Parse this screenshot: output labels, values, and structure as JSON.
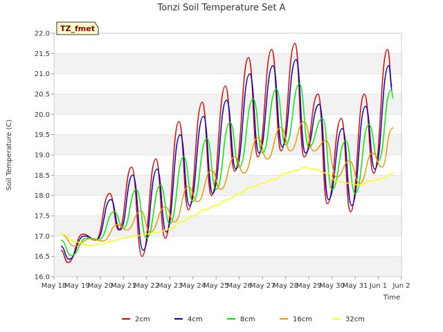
{
  "chart_data": {
    "type": "line",
    "title": "Tonzi Soil Temperature Set A",
    "xlabel": "Time",
    "ylabel": "Soil Temperature (C)",
    "tag": "TZ_fmet",
    "xlim": [
      0,
      15
    ],
    "ylim": [
      16.0,
      22.0
    ],
    "x_ticks": [
      {
        "x": 0,
        "label": "May 18"
      },
      {
        "x": 1,
        "label": "May 19"
      },
      {
        "x": 2,
        "label": "May 20"
      },
      {
        "x": 3,
        "label": "May 21"
      },
      {
        "x": 4,
        "label": "May 22"
      },
      {
        "x": 5,
        "label": "May 23"
      },
      {
        "x": 6,
        "label": "May 24"
      },
      {
        "x": 7,
        "label": "May 25"
      },
      {
        "x": 8,
        "label": "May 26"
      },
      {
        "x": 9,
        "label": "May 27"
      },
      {
        "x": 10,
        "label": "May 28"
      },
      {
        "x": 11,
        "label": "May 29"
      },
      {
        "x": 12,
        "label": "May 30"
      },
      {
        "x": 13,
        "label": "May 31"
      },
      {
        "x": 14,
        "label": "Jun 1"
      },
      {
        "x": 15,
        "label": "Jun 2"
      }
    ],
    "y_ticks": [
      "16.0",
      "16.5",
      "17.0",
      "17.5",
      "18.0",
      "18.5",
      "19.0",
      "19.5",
      "20.0",
      "20.5",
      "21.0",
      "21.5",
      "22.0"
    ],
    "grid": "horizontal bands",
    "legend_position": "bottom",
    "series": [
      {
        "name": "2cm",
        "color": "#dd0000",
        "points": [
          [
            0.3,
            16.65
          ],
          [
            0.6,
            16.35
          ],
          [
            1.25,
            17.05
          ],
          [
            1.8,
            16.9
          ],
          [
            2.4,
            18.05
          ],
          [
            2.8,
            17.15
          ],
          [
            3.35,
            18.7
          ],
          [
            3.8,
            16.5
          ],
          [
            4.4,
            18.9
          ],
          [
            4.8,
            16.95
          ],
          [
            5.4,
            19.82
          ],
          [
            5.8,
            17.65
          ],
          [
            6.4,
            20.3
          ],
          [
            6.8,
            18.0
          ],
          [
            7.4,
            20.7
          ],
          [
            7.8,
            18.6
          ],
          [
            8.4,
            21.4
          ],
          [
            8.8,
            18.95
          ],
          [
            9.4,
            21.6
          ],
          [
            9.8,
            19.1
          ],
          [
            10.4,
            21.75
          ],
          [
            10.8,
            18.95
          ],
          [
            11.4,
            20.5
          ],
          [
            11.8,
            17.8
          ],
          [
            12.4,
            19.9
          ],
          [
            12.8,
            17.6
          ],
          [
            13.4,
            20.5
          ],
          [
            13.8,
            18.55
          ],
          [
            14.4,
            21.6
          ],
          [
            14.6,
            20.7
          ]
        ]
      },
      {
        "name": "4cm",
        "color": "#0000bb",
        "points": [
          [
            0.3,
            16.75
          ],
          [
            0.65,
            16.43
          ],
          [
            1.3,
            17.0
          ],
          [
            1.85,
            16.92
          ],
          [
            2.45,
            17.9
          ],
          [
            2.85,
            17.15
          ],
          [
            3.4,
            18.5
          ],
          [
            3.85,
            16.65
          ],
          [
            4.45,
            18.65
          ],
          [
            4.85,
            17.1
          ],
          [
            5.45,
            19.5
          ],
          [
            5.85,
            17.75
          ],
          [
            6.45,
            19.95
          ],
          [
            6.85,
            18.05
          ],
          [
            7.45,
            20.35
          ],
          [
            7.85,
            18.65
          ],
          [
            8.45,
            21.0
          ],
          [
            8.85,
            19.05
          ],
          [
            9.45,
            21.2
          ],
          [
            9.85,
            19.2
          ],
          [
            10.45,
            21.35
          ],
          [
            10.85,
            19.05
          ],
          [
            11.45,
            20.25
          ],
          [
            11.85,
            17.9
          ],
          [
            12.45,
            19.65
          ],
          [
            12.85,
            17.75
          ],
          [
            13.45,
            20.2
          ],
          [
            13.85,
            18.65
          ],
          [
            14.45,
            21.2
          ],
          [
            14.6,
            20.6
          ]
        ]
      },
      {
        "name": "8cm",
        "color": "#00ee00",
        "points": [
          [
            0.3,
            16.9
          ],
          [
            0.75,
            16.52
          ],
          [
            1.4,
            16.95
          ],
          [
            1.95,
            16.92
          ],
          [
            2.6,
            17.6
          ],
          [
            3.0,
            17.2
          ],
          [
            3.55,
            18.15
          ],
          [
            4.0,
            16.95
          ],
          [
            4.6,
            18.25
          ],
          [
            5.0,
            17.3
          ],
          [
            5.6,
            18.95
          ],
          [
            6.0,
            17.85
          ],
          [
            6.6,
            19.4
          ],
          [
            7.0,
            18.15
          ],
          [
            7.6,
            19.8
          ],
          [
            8.0,
            18.7
          ],
          [
            8.6,
            20.38
          ],
          [
            9.0,
            19.05
          ],
          [
            9.6,
            20.62
          ],
          [
            10.0,
            19.25
          ],
          [
            10.6,
            20.75
          ],
          [
            11.0,
            19.2
          ],
          [
            11.6,
            19.9
          ],
          [
            12.0,
            18.15
          ],
          [
            12.6,
            19.35
          ],
          [
            13.0,
            18.05
          ],
          [
            13.6,
            19.75
          ],
          [
            14.0,
            18.85
          ],
          [
            14.55,
            20.6
          ],
          [
            14.65,
            20.4
          ]
        ]
      },
      {
        "name": "16cm",
        "color": "#ee9900",
        "points": [
          [
            0.3,
            17.05
          ],
          [
            0.9,
            16.75
          ],
          [
            1.55,
            16.93
          ],
          [
            2.1,
            16.88
          ],
          [
            2.75,
            17.28
          ],
          [
            3.15,
            17.15
          ],
          [
            3.75,
            17.62
          ],
          [
            4.15,
            17.1
          ],
          [
            4.8,
            17.72
          ],
          [
            5.2,
            17.35
          ],
          [
            5.8,
            18.22
          ],
          [
            6.2,
            17.85
          ],
          [
            6.8,
            18.62
          ],
          [
            7.2,
            18.15
          ],
          [
            7.8,
            18.95
          ],
          [
            8.2,
            18.55
          ],
          [
            8.8,
            19.42
          ],
          [
            9.2,
            18.9
          ],
          [
            9.8,
            19.68
          ],
          [
            10.2,
            19.1
          ],
          [
            10.8,
            19.82
          ],
          [
            11.2,
            19.1
          ],
          [
            11.75,
            19.35
          ],
          [
            12.2,
            18.45
          ],
          [
            12.75,
            18.85
          ],
          [
            13.2,
            18.3
          ],
          [
            13.75,
            19.05
          ],
          [
            14.15,
            18.7
          ],
          [
            14.6,
            19.65
          ],
          [
            14.65,
            19.68
          ]
        ]
      },
      {
        "name": "32cm",
        "color": "#ffff00",
        "points": [
          [
            0.3,
            17.05
          ],
          [
            1.0,
            16.85
          ],
          [
            1.5,
            16.77
          ],
          [
            2.0,
            16.8
          ],
          [
            2.5,
            16.88
          ],
          [
            3.0,
            16.95
          ],
          [
            3.5,
            17.0
          ],
          [
            4.0,
            17.05
          ],
          [
            4.5,
            17.1
          ],
          [
            5.0,
            17.18
          ],
          [
            5.5,
            17.35
          ],
          [
            6.0,
            17.5
          ],
          [
            6.5,
            17.65
          ],
          [
            7.0,
            17.75
          ],
          [
            7.5,
            17.9
          ],
          [
            8.0,
            18.05
          ],
          [
            8.5,
            18.2
          ],
          [
            9.0,
            18.3
          ],
          [
            9.5,
            18.4
          ],
          [
            10.0,
            18.55
          ],
          [
            10.5,
            18.62
          ],
          [
            10.8,
            18.7
          ],
          [
            11.2,
            18.65
          ],
          [
            11.8,
            18.55
          ],
          [
            12.2,
            18.35
          ],
          [
            12.8,
            18.3
          ],
          [
            13.2,
            18.25
          ],
          [
            13.6,
            18.35
          ],
          [
            14.2,
            18.42
          ],
          [
            14.65,
            18.55
          ]
        ]
      }
    ]
  }
}
